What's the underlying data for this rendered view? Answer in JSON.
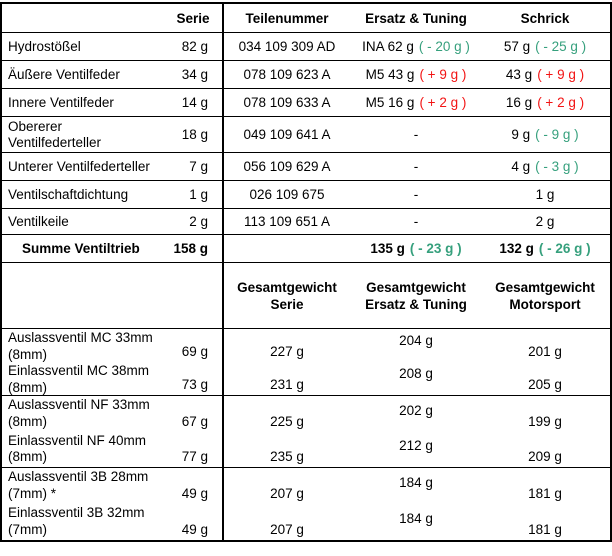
{
  "colors": {
    "background": "#ffffff",
    "border_black": "#000000",
    "negative_green": "#36a07d",
    "positive_red": "#f21414"
  },
  "table1": {
    "headers": {
      "serie": "Serie",
      "teilenummer": "Teilenummer",
      "ersatz": "Ersatz & Tuning",
      "schrick": "Schrick"
    },
    "rows": [
      {
        "label": "Hydrostößel",
        "serie": "82 g",
        "teilenummer": "034 109 309 AD",
        "ersatz_main": "INA 62 g",
        "ersatz_delta": "( - 20 g )",
        "ersatz_delta_class": "green",
        "schrick_main": "57 g",
        "schrick_delta": "( - 25 g )",
        "schrick_delta_class": "green"
      },
      {
        "label": "Äußere Ventilfeder",
        "serie": "34 g",
        "teilenummer": "078 109 623 A",
        "ersatz_main": "M5 43 g",
        "ersatz_delta": "( + 9 g )",
        "ersatz_delta_class": "red",
        "schrick_main": "43 g",
        "schrick_delta": "( + 9 g )",
        "schrick_delta_class": "red"
      },
      {
        "label": "Innere Ventilfeder",
        "serie": "14 g",
        "teilenummer": "078 109 633 A",
        "ersatz_main": "M5 16 g",
        "ersatz_delta": "( + 2 g )",
        "ersatz_delta_class": "red",
        "schrick_main": "16 g",
        "schrick_delta": "( + 2 g )",
        "schrick_delta_class": "red"
      },
      {
        "label_line1": "Obererer",
        "label_line2": "Ventilfederteller",
        "serie": "18 g",
        "teilenummer": "049 109 641 A",
        "ersatz_main": "-",
        "ersatz_delta": "",
        "ersatz_delta_class": "",
        "schrick_main": "9 g",
        "schrick_delta": "( - 9 g )",
        "schrick_delta_class": "green"
      },
      {
        "label": "Unterer Ventilfederteller",
        "serie": "7 g",
        "teilenummer": "056 109 629 A",
        "ersatz_main": "-",
        "ersatz_delta": "",
        "ersatz_delta_class": "",
        "schrick_main": "4 g",
        "schrick_delta": "( - 3 g )",
        "schrick_delta_class": "green"
      },
      {
        "label": "Ventilschaftdichtung",
        "serie": "1 g",
        "teilenummer": "026 109 675",
        "ersatz_main": "-",
        "ersatz_delta": "",
        "ersatz_delta_class": "",
        "schrick_main": "1 g",
        "schrick_delta": "",
        "schrick_delta_class": ""
      },
      {
        "label": "Ventilkeile",
        "serie": "2 g",
        "teilenummer": "113 109 651 A",
        "ersatz_main": "-",
        "ersatz_delta": "",
        "ersatz_delta_class": "",
        "schrick_main": "2 g",
        "schrick_delta": "",
        "schrick_delta_class": ""
      }
    ],
    "summe": {
      "label": "Summe Ventiltrieb",
      "serie": "158 g",
      "ersatz_main": "135 g",
      "ersatz_delta": "( - 23 g )",
      "ersatz_delta_class": "green",
      "schrick_main": "132 g",
      "schrick_delta": "( - 26 g )",
      "schrick_delta_class": "green"
    }
  },
  "table2": {
    "headers": [
      {
        "line1": "Gesamtgewicht",
        "line2": "Serie"
      },
      {
        "line1": "Gesamtgewicht",
        "line2": "Ersatz & Tuning"
      },
      {
        "line1": "Gesamtgewicht",
        "line2": "Motorsport"
      }
    ],
    "groups": [
      {
        "rows": [
          {
            "label_line1": "Auslassventil MC 33mm",
            "label_line2": "(8mm)",
            "serie": "69 g",
            "gesamt_serie": "227 g",
            "gesamt_ersatz": "204 g",
            "gesamt_motorsport": "201 g"
          },
          {
            "label_line1": "Einlassventil MC 38mm",
            "label_line2": "(8mm)",
            "serie": "73 g",
            "gesamt_serie": "231 g",
            "gesamt_ersatz": "208 g",
            "gesamt_motorsport": "205 g"
          }
        ]
      },
      {
        "rows": [
          {
            "label_line1": "Auslassventil NF 33mm",
            "label_line2": "(8mm)",
            "serie": "67 g",
            "gesamt_serie": "225 g",
            "gesamt_ersatz": "202 g",
            "gesamt_motorsport": "199 g"
          },
          {
            "label_line1": "Einlassventil NF 40mm",
            "label_line2": "(8mm)",
            "serie": "77 g",
            "gesamt_serie": "235 g",
            "gesamt_ersatz": "212 g",
            "gesamt_motorsport": "209 g"
          }
        ]
      },
      {
        "rows": [
          {
            "label_line1": "Auslassventil 3B 28mm",
            "label_line2": "(7mm) *",
            "serie": "49 g",
            "gesamt_serie": "207 g",
            "gesamt_ersatz": "184 g",
            "gesamt_motorsport": "181 g"
          },
          {
            "label_line1": "Einlassventil 3B 32mm",
            "label_line2": "(7mm)",
            "serie": "49 g",
            "gesamt_serie": "207 g",
            "gesamt_ersatz": "184 g",
            "gesamt_motorsport": "181 g"
          }
        ]
      }
    ]
  }
}
